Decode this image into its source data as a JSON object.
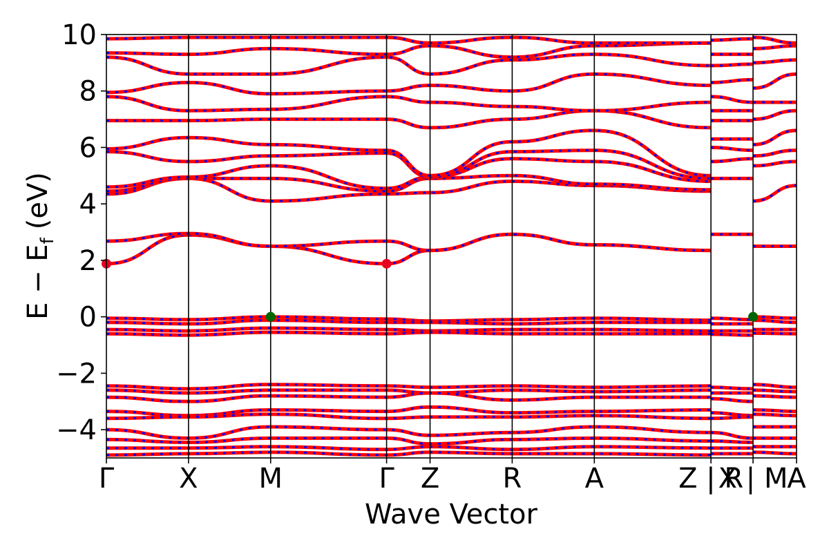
{
  "chart_data": {
    "type": "line",
    "title": "",
    "xlabel": "Wave Vector",
    "ylabel_main": "E − E",
    "ylabel_sub": "f",
    "ylabel_unit": "(eV)",
    "ylim": [
      -5,
      10
    ],
    "yticks": [
      {
        "value": -4,
        "label": "−4"
      },
      {
        "value": -2,
        "label": "−2"
      },
      {
        "value": 0,
        "label": "0"
      },
      {
        "value": 2,
        "label": "2"
      },
      {
        "value": 4,
        "label": "4"
      },
      {
        "value": 6,
        "label": "6"
      },
      {
        "value": 8,
        "label": "8"
      },
      {
        "value": 10,
        "label": "10"
      }
    ],
    "xlim": [
      0,
      1
    ],
    "kpoints": [
      {
        "x": 0.0,
        "label": "Γ"
      },
      {
        "x": 0.119,
        "label": "X"
      },
      {
        "x": 0.238,
        "label": "M"
      },
      {
        "x": 0.406,
        "label": "Γ"
      },
      {
        "x": 0.469,
        "label": "Z"
      },
      {
        "x": 0.588,
        "label": "R"
      },
      {
        "x": 0.707,
        "label": "A"
      },
      {
        "x": 0.876,
        "label": "Z | R"
      },
      {
        "x": 0.937,
        "label": "X | M"
      },
      {
        "x": 1.0,
        "label": "A"
      }
    ],
    "band_gap_markers": [
      {
        "x": 0.0,
        "y": 1.88,
        "color": "#e8001f",
        "role": "CBM"
      },
      {
        "x": 0.406,
        "y": 1.88,
        "color": "#e8001f",
        "role": "CBM"
      },
      {
        "x": 0.238,
        "y": 0.0,
        "color": "#006400",
        "role": "VBM"
      },
      {
        "x": 0.937,
        "y": 0.0,
        "color": "#006400",
        "role": "VBM"
      }
    ],
    "series": [
      {
        "color": "#ff0000",
        "dash_color": "#0000ff"
      }
    ],
    "bands": [
      {
        "y": [
          1.88,
          2.9,
          2.5,
          1.88,
          2.35,
          2.92,
          2.55,
          2.35
        ]
      },
      {
        "y": [
          2.68,
          2.95,
          2.5,
          2.68,
          2.35,
          2.92,
          2.55,
          2.35
        ]
      },
      {
        "y": [
          4.35,
          4.9,
          4.1,
          4.35,
          4.4,
          4.8,
          4.65,
          4.45
        ]
      },
      {
        "y": [
          4.45,
          4.9,
          4.9,
          4.45,
          4.9,
          5.0,
          4.7,
          4.5
        ]
      },
      {
        "y": [
          4.6,
          4.95,
          5.35,
          4.55,
          4.95,
          5.6,
          5.5,
          4.8
        ]
      },
      {
        "y": [
          5.85,
          5.5,
          5.7,
          5.8,
          4.95,
          5.85,
          5.9,
          4.9
        ]
      },
      {
        "y": [
          5.95,
          6.35,
          6.1,
          5.9,
          5.0,
          6.2,
          6.6,
          5.0
        ]
      },
      {
        "y": [
          6.95,
          6.95,
          7.0,
          7.0,
          6.7,
          7.0,
          7.3,
          6.7
        ]
      },
      {
        "y": [
          7.8,
          7.3,
          7.35,
          7.8,
          7.6,
          7.45,
          7.3,
          7.6
        ]
      },
      {
        "y": [
          7.95,
          8.3,
          7.9,
          8.0,
          8.2,
          8.0,
          8.6,
          8.2
        ]
      },
      {
        "y": [
          9.2,
          8.6,
          8.6,
          9.2,
          8.6,
          9.1,
          9.3,
          8.9
        ]
      },
      {
        "y": [
          9.35,
          9.3,
          9.5,
          9.3,
          9.6,
          9.2,
          9.6,
          9.7
        ]
      },
      {
        "y": [
          9.85,
          9.9,
          9.9,
          9.9,
          9.7,
          9.9,
          9.7,
          9.7
        ]
      },
      {
        "y": [
          -0.05,
          -0.1,
          0.0,
          -0.08,
          -0.15,
          -0.1,
          -0.05,
          -0.12
        ]
      },
      {
        "y": [
          -0.2,
          -0.25,
          -0.12,
          -0.2,
          -0.2,
          -0.25,
          -0.2,
          -0.2
        ]
      },
      {
        "y": [
          -0.45,
          -0.5,
          -0.4,
          -0.45,
          -0.5,
          -0.45,
          -0.45,
          -0.5
        ]
      },
      {
        "y": [
          -0.6,
          -0.65,
          -0.55,
          -0.6,
          -0.55,
          -0.6,
          -0.6,
          -0.6
        ]
      },
      {
        "y": [
          -2.45,
          -2.55,
          -2.4,
          -2.45,
          -2.5,
          -2.45,
          -2.5,
          -2.45
        ]
      },
      {
        "y": [
          -2.6,
          -2.7,
          -2.6,
          -2.6,
          -2.7,
          -2.6,
          -2.65,
          -2.6
        ]
      },
      {
        "y": [
          -2.85,
          -3.0,
          -2.8,
          -2.85,
          -2.7,
          -2.95,
          -2.85,
          -2.85
        ]
      },
      {
        "y": [
          -3.35,
          -3.5,
          -3.3,
          -3.35,
          -3.2,
          -3.4,
          -3.35,
          -3.3
        ]
      },
      {
        "y": [
          -3.6,
          -3.55,
          -3.45,
          -3.6,
          -3.55,
          -3.55,
          -3.5,
          -3.6
        ]
      },
      {
        "y": [
          -4.0,
          -4.3,
          -3.9,
          -4.0,
          -4.2,
          -4.1,
          -3.9,
          -4.1
        ]
      },
      {
        "y": [
          -4.35,
          -4.45,
          -4.3,
          -4.3,
          -4.5,
          -4.35,
          -4.3,
          -4.4
        ]
      },
      {
        "y": [
          -4.65,
          -4.65,
          -4.6,
          -4.7,
          -4.6,
          -4.7,
          -4.6,
          -4.65
        ]
      },
      {
        "y": [
          -4.9,
          -4.85,
          -4.8,
          -4.9,
          -4.8,
          -4.85,
          -4.85,
          -4.9
        ]
      }
    ],
    "tail_bands": [
      {
        "seg": 0,
        "y": [
          2.92,
          2.92
        ]
      },
      {
        "seg": 1,
        "y": [
          2.5,
          2.5
        ]
      },
      {
        "seg": 1,
        "y": [
          4.1,
          4.65
        ]
      },
      {
        "seg": 0,
        "y": [
          4.9,
          4.9
        ]
      },
      {
        "seg": 0,
        "y": [
          5.5,
          5.6
        ]
      },
      {
        "seg": 1,
        "y": [
          5.35,
          5.5
        ]
      },
      {
        "seg": 0,
        "y": [
          6.0,
          5.9
        ]
      },
      {
        "seg": 1,
        "y": [
          5.7,
          5.9
        ]
      },
      {
        "seg": 0,
        "y": [
          6.3,
          6.3
        ]
      },
      {
        "seg": 1,
        "y": [
          6.1,
          6.6
        ]
      },
      {
        "seg": 0,
        "y": [
          6.95,
          6.95
        ]
      },
      {
        "seg": 1,
        "y": [
          7.0,
          7.3
        ]
      },
      {
        "seg": 0,
        "y": [
          7.3,
          7.3
        ]
      },
      {
        "seg": 1,
        "y": [
          7.6,
          7.6
        ]
      },
      {
        "seg": 0,
        "y": [
          7.8,
          7.6
        ]
      },
      {
        "seg": 0,
        "y": [
          8.3,
          8.4
        ]
      },
      {
        "seg": 1,
        "y": [
          8.1,
          8.6
        ]
      },
      {
        "seg": 0,
        "y": [
          8.9,
          8.95
        ]
      },
      {
        "seg": 1,
        "y": [
          9.0,
          9.1
        ]
      },
      {
        "seg": 0,
        "y": [
          9.3,
          9.3
        ]
      },
      {
        "seg": 1,
        "y": [
          9.5,
          9.6
        ]
      },
      {
        "seg": 0,
        "y": [
          9.8,
          9.85
        ]
      },
      {
        "seg": 1,
        "y": [
          9.9,
          9.7
        ]
      },
      {
        "seg": 0,
        "y": [
          -0.05,
          -0.1
        ]
      },
      {
        "seg": 1,
        "y": [
          0.0,
          -0.05
        ]
      },
      {
        "seg": 0,
        "y": [
          -0.25,
          -0.25
        ]
      },
      {
        "seg": 1,
        "y": [
          -0.12,
          -0.2
        ]
      },
      {
        "seg": 0,
        "y": [
          -0.5,
          -0.5
        ]
      },
      {
        "seg": 1,
        "y": [
          -0.45,
          -0.45
        ]
      },
      {
        "seg": 0,
        "y": [
          -0.62,
          -0.65
        ]
      },
      {
        "seg": 1,
        "y": [
          -0.58,
          -0.6
        ]
      },
      {
        "seg": 0,
        "y": [
          -2.5,
          -2.55
        ]
      },
      {
        "seg": 1,
        "y": [
          -2.4,
          -2.5
        ]
      },
      {
        "seg": 0,
        "y": [
          -2.7,
          -2.7
        ]
      },
      {
        "seg": 1,
        "y": [
          -2.6,
          -2.65
        ]
      },
      {
        "seg": 0,
        "y": [
          -2.9,
          -3.0
        ]
      },
      {
        "seg": 1,
        "y": [
          -2.8,
          -2.85
        ]
      },
      {
        "seg": 0,
        "y": [
          -3.4,
          -3.5
        ]
      },
      {
        "seg": 1,
        "y": [
          -3.3,
          -3.35
        ]
      },
      {
        "seg": 0,
        "y": [
          -3.6,
          -3.55
        ]
      },
      {
        "seg": 1,
        "y": [
          -3.45,
          -3.5
        ]
      },
      {
        "seg": 0,
        "y": [
          -4.1,
          -4.3
        ]
      },
      {
        "seg": 1,
        "y": [
          -3.9,
          -3.9
        ]
      },
      {
        "seg": 0,
        "y": [
          -4.4,
          -4.45
        ]
      },
      {
        "seg": 1,
        "y": [
          -4.3,
          -4.3
        ]
      },
      {
        "seg": 0,
        "y": [
          -4.65,
          -4.65
        ]
      },
      {
        "seg": 1,
        "y": [
          -4.6,
          -4.6
        ]
      },
      {
        "seg": 0,
        "y": [
          -4.85,
          -4.85
        ]
      },
      {
        "seg": 1,
        "y": [
          -4.8,
          -4.85
        ]
      }
    ]
  }
}
